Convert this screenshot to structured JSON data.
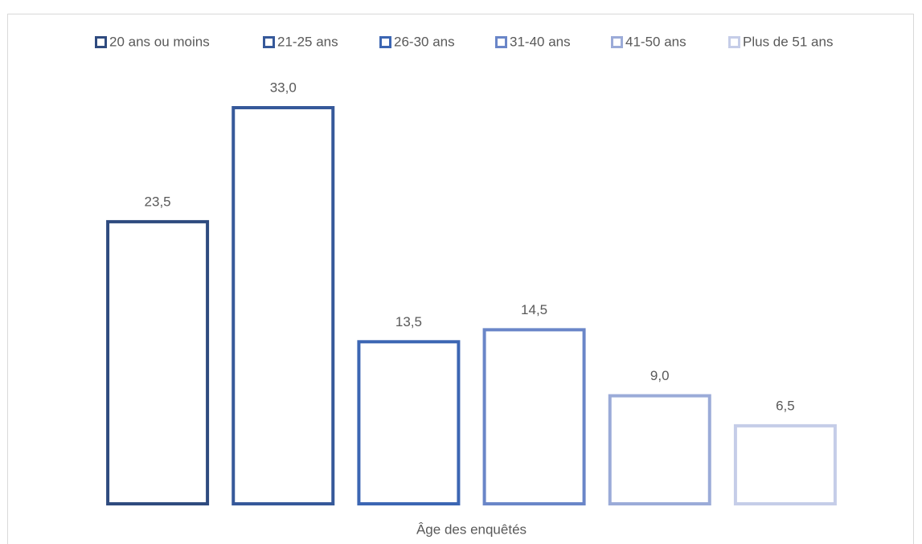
{
  "chart_data": {
    "type": "bar",
    "categories": [
      "Âge des enquêtés"
    ],
    "series": [
      {
        "name": "20 ans ou moins",
        "color": "#2f4b7f",
        "values": [
          23.5
        ],
        "value_labels": [
          "23,5"
        ]
      },
      {
        "name": "21-25 ans",
        "color": "#36599a",
        "values": [
          33.0
        ],
        "value_labels": [
          "33,0"
        ]
      },
      {
        "name": "26-30 ans",
        "color": "#3c66b3",
        "values": [
          13.5
        ],
        "value_labels": [
          "13,5"
        ]
      },
      {
        "name": "31-40 ans",
        "color": "#6a86c8",
        "values": [
          14.5
        ],
        "value_labels": [
          "14,5"
        ]
      },
      {
        "name": "41-50 ans",
        "color": "#9babd8",
        "values": [
          9.0
        ],
        "value_labels": [
          "9,0"
        ]
      },
      {
        "name": "Plus de 51 ans",
        "color": "#c5cde8",
        "values": [
          6.5
        ],
        "value_labels": [
          "6,5"
        ]
      }
    ],
    "legend": "top"
  }
}
